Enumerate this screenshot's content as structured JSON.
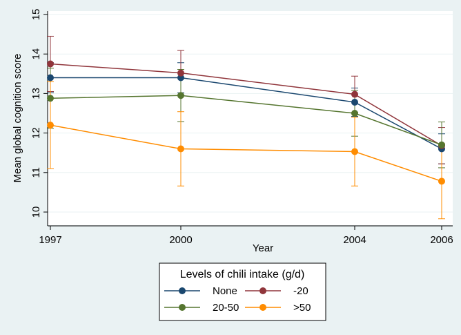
{
  "chart_data": {
    "type": "line",
    "title": "",
    "xlabel": "Year",
    "ylabel": "Mean global cognition score",
    "x": [
      1997,
      2000,
      2004,
      2006
    ],
    "x_tick_labels": [
      "1997",
      "2000",
      "2004",
      "2006"
    ],
    "y_ticks": [
      10,
      11,
      12,
      13,
      14,
      15
    ],
    "y_tick_labels": [
      "10",
      "11",
      "12",
      "13",
      "14",
      "15"
    ],
    "xlim": [
      1997,
      2006
    ],
    "ylim": [
      9.6,
      15.1
    ],
    "grid": "horizontal",
    "legend": {
      "title": "Levels of chili intake (g/d)",
      "placement": "bottom"
    },
    "series": [
      {
        "name": "None",
        "color": "#1a476f",
        "values": [
          13.4,
          13.4,
          12.78,
          11.6
        ],
        "lower": [
          13.02,
          13.02,
          12.42,
          11.22
        ],
        "upper": [
          13.78,
          13.78,
          13.14,
          11.98
        ]
      },
      {
        "name": "-20",
        "color": "#90353b",
        "values": [
          13.75,
          13.52,
          12.98,
          11.68
        ],
        "lower": [
          13.05,
          12.95,
          12.52,
          11.22
        ],
        "upper": [
          14.45,
          14.09,
          13.44,
          12.14
        ]
      },
      {
        "name": "20-50",
        "color": "#55752f",
        "values": [
          12.88,
          12.95,
          12.5,
          11.7
        ],
        "lower": [
          12.12,
          12.29,
          11.92,
          11.12
        ],
        "upper": [
          13.64,
          13.61,
          13.08,
          12.28
        ]
      },
      {
        "name": ">50",
        "color": "#ff8c00",
        "values": [
          12.2,
          11.6,
          11.53,
          10.78
        ],
        "lower": [
          11.1,
          10.66,
          10.66,
          9.83
        ],
        "upper": [
          13.3,
          12.54,
          12.4,
          11.73
        ]
      }
    ]
  }
}
